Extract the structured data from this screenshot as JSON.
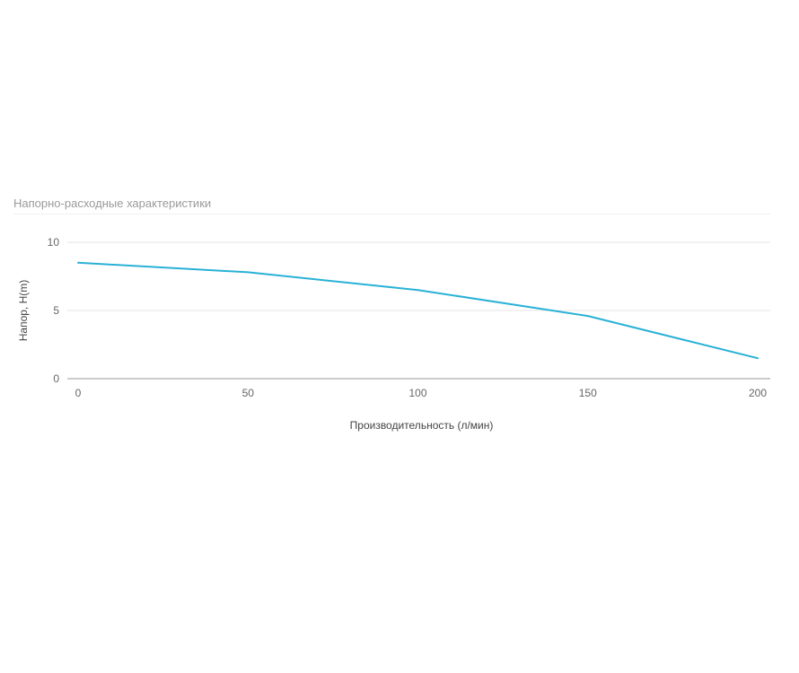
{
  "chart_data": {
    "type": "line",
    "title": "Напорно-расходные характеристики",
    "xlabel": "Производительность (л/мин)",
    "ylabel": "Напор, H(m)",
    "xlim": [
      0,
      200
    ],
    "ylim": [
      0,
      10
    ],
    "x_ticks": [
      "0",
      "50",
      "100",
      "150",
      "200"
    ],
    "y_ticks": [
      "0",
      "5",
      "10"
    ],
    "grid": true,
    "series": [
      {
        "x": [
          0,
          50,
          100,
          150,
          200
        ],
        "values": [
          8.5,
          7.8,
          6.5,
          4.6,
          1.5
        ],
        "color": "#29b1d6"
      }
    ]
  }
}
